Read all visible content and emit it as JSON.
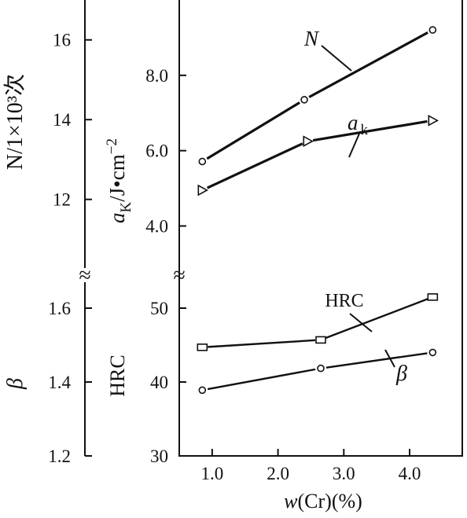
{
  "chart_data": {
    "type": "line",
    "x_axis": {
      "label_var": "w",
      "label_rest": "(Cr)(%)",
      "ticks": [
        1.0,
        2.0,
        3.0,
        4.0
      ],
      "tick_labels": [
        "1.0",
        "2.0",
        "3.0",
        "4.0"
      ],
      "range": [
        0.5,
        4.8
      ]
    },
    "y_axes": {
      "N": {
        "label": "N/1×10³次",
        "ticks": [
          12,
          14,
          16
        ],
        "tick_labels": [
          "12",
          "14",
          "16"
        ],
        "range": [
          10.2,
          17
        ]
      },
      "beta": {
        "label": "β",
        "ticks": [
          1.2,
          1.4,
          1.6
        ],
        "tick_labels": [
          "1.2",
          "1.4",
          "1.6"
        ],
        "range": [
          1.2,
          1.7
        ]
      },
      "ak": {
        "label": "aK/J•cm⁻²",
        "ticks": [
          4.0,
          6.0,
          8.0
        ],
        "tick_labels": [
          "4.0",
          "6.0",
          "8.0"
        ],
        "range": [
          2.8,
          10
        ]
      },
      "HRC": {
        "label": "HRC",
        "ticks": [
          30,
          40,
          50
        ],
        "tick_labels": [
          "30",
          "40",
          "50"
        ],
        "range": [
          30,
          55
        ]
      }
    },
    "break_symbol": "≈",
    "series": [
      {
        "name": "N",
        "axis": "N",
        "marker": "circle",
        "x": [
          0.85,
          2.4,
          4.35
        ],
        "y": [
          12.95,
          14.5,
          16.25
        ]
      },
      {
        "name": "ak",
        "axis": "ak",
        "marker": "triangle-right",
        "x": [
          0.85,
          2.45,
          4.35
        ],
        "y": [
          4.95,
          6.25,
          6.8
        ]
      },
      {
        "name": "HRC",
        "axis": "HRC",
        "marker": "square",
        "x": [
          0.85,
          2.65,
          4.35
        ],
        "y": [
          44.7,
          45.7,
          51.5
        ]
      },
      {
        "name": "β",
        "axis": "beta",
        "marker": "circle",
        "x": [
          0.85,
          2.65,
          4.35
        ],
        "y": [
          1.378,
          1.437,
          1.48
        ]
      }
    ],
    "annotations": [
      {
        "series": "N",
        "text": "N"
      },
      {
        "series": "ak",
        "text_main": "a",
        "text_sub": "k"
      },
      {
        "series": "HRC",
        "text": "HRC"
      },
      {
        "series": "β",
        "text": "β"
      }
    ]
  }
}
